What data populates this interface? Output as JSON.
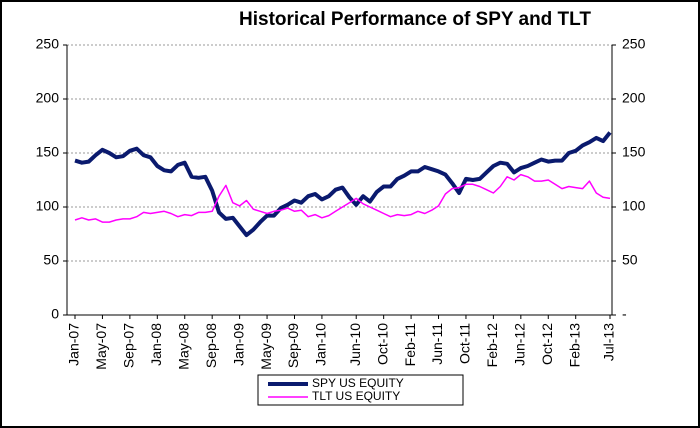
{
  "chart_data": {
    "type": "line",
    "title": "Historical Performance of SPY and TLT",
    "categories": [
      "Jan-07",
      null,
      null,
      null,
      "May-07",
      null,
      null,
      null,
      "Sep-07",
      null,
      null,
      null,
      "Jan-08",
      null,
      null,
      null,
      "May-08",
      null,
      null,
      null,
      "Sep-08",
      null,
      null,
      null,
      "Jan-09",
      null,
      null,
      null,
      "May-09",
      null,
      null,
      null,
      "Sep-09",
      null,
      null,
      null,
      "Jan-10",
      null,
      null,
      null,
      null,
      "Jun-10",
      null,
      null,
      null,
      "Oct-10",
      null,
      null,
      null,
      "Feb-11",
      null,
      null,
      null,
      "Jun-11",
      null,
      null,
      null,
      "Oct-11",
      null,
      null,
      null,
      "Feb-12",
      null,
      null,
      null,
      "Jun-12",
      null,
      null,
      null,
      "Oct-12",
      null,
      null,
      null,
      "Feb-13",
      null,
      null,
      null,
      null,
      "Jul-13"
    ],
    "series": [
      {
        "name": "SPY US EQUITY",
        "color": "#0a1a6e",
        "values": [
          143,
          141,
          142,
          148,
          153,
          150,
          146,
          147,
          152,
          154,
          148,
          146,
          138,
          134,
          133,
          139,
          141,
          128,
          127,
          128,
          115,
          95,
          89,
          90,
          82,
          74,
          79,
          86,
          92,
          92,
          99,
          102,
          106,
          104,
          110,
          112,
          107,
          110,
          116,
          118,
          109,
          102,
          110,
          105,
          114,
          119,
          119,
          126,
          129,
          133,
          133,
          137,
          135,
          133,
          130,
          122,
          113,
          126,
          125,
          126,
          132,
          138,
          141,
          140,
          132,
          136,
          138,
          141,
          144,
          142,
          143,
          143,
          150,
          152,
          157,
          160,
          164,
          161,
          169
        ]
      },
      {
        "name": "TLT US EQUITY",
        "color": "#ff00ff",
        "values": [
          88,
          90,
          88,
          89,
          86,
          86,
          88,
          89,
          89,
          91,
          95,
          94,
          95,
          96,
          94,
          91,
          93,
          92,
          95,
          95,
          96,
          110,
          120,
          104,
          101,
          106,
          98,
          96,
          94,
          96,
          97,
          99,
          96,
          97,
          91,
          93,
          90,
          92,
          96,
          100,
          104,
          108,
          103,
          100,
          97,
          94,
          91,
          93,
          92,
          93,
          96,
          94,
          97,
          101,
          112,
          117,
          118,
          121,
          121,
          119,
          116,
          113,
          119,
          128,
          125,
          130,
          128,
          124,
          124,
          125,
          121,
          117,
          119,
          118,
          117,
          124,
          113,
          109,
          108
        ]
      }
    ],
    "ylim": [
      0,
      250
    ],
    "yticks": [
      0,
      50,
      100,
      150,
      200,
      250
    ],
    "y2lim": [
      0,
      250
    ],
    "y2ticks": [
      {
        "value": 0,
        "label": "-"
      },
      50,
      100,
      150,
      200,
      250
    ],
    "grid": true
  }
}
